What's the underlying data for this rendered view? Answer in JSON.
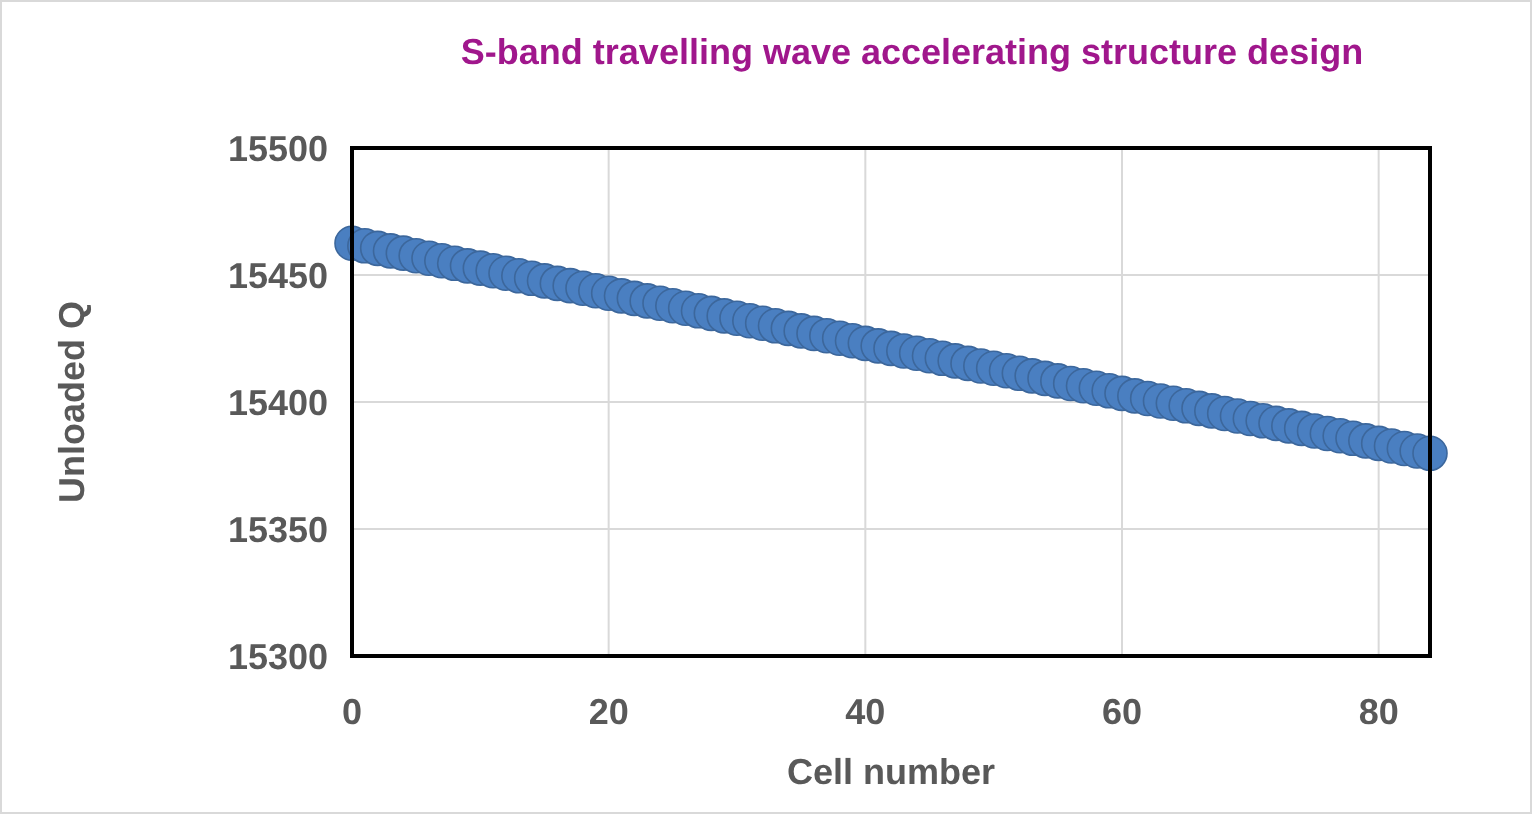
{
  "chart_data": {
    "type": "scatter",
    "title": "S-band travelling wave accelerating structure design",
    "xlabel": "Cell number",
    "ylabel": "Unloaded Q",
    "xlim": [
      0,
      84
    ],
    "xticks": [
      0,
      20,
      40,
      60,
      80
    ],
    "ylim": [
      15300,
      15500
    ],
    "yticks": [
      15300,
      15350,
      15400,
      15450,
      15500
    ],
    "grid": true,
    "marker": "circle",
    "series": [
      {
        "color": "#4a7fc1",
        "x": [
          0,
          1,
          2,
          3,
          4,
          5,
          6,
          7,
          8,
          9,
          10,
          11,
          12,
          13,
          14,
          15,
          16,
          17,
          18,
          19,
          20,
          21,
          22,
          23,
          24,
          25,
          26,
          27,
          28,
          29,
          30,
          31,
          32,
          33,
          34,
          35,
          36,
          37,
          38,
          39,
          40,
          41,
          42,
          43,
          44,
          45,
          46,
          47,
          48,
          49,
          50,
          51,
          52,
          53,
          54,
          55,
          56,
          57,
          58,
          59,
          60,
          61,
          62,
          63,
          64,
          65,
          66,
          67,
          68,
          69,
          70,
          71,
          72,
          73,
          74,
          75,
          76,
          77,
          78,
          79,
          80,
          81,
          82,
          83,
          84
        ],
        "values": [
          15462.5,
          15461.5,
          15460.5,
          15459.5,
          15458.6,
          15457.6,
          15456.6,
          15455.6,
          15454.6,
          15453.6,
          15452.7,
          15451.7,
          15450.7,
          15449.7,
          15448.7,
          15447.7,
          15446.7,
          15445.8,
          15444.8,
          15443.8,
          15442.8,
          15441.8,
          15440.8,
          15439.8,
          15438.9,
          15437.9,
          15436.9,
          15435.9,
          15434.9,
          15433.9,
          15433.0,
          15432.0,
          15431.0,
          15430.0,
          15429.0,
          15428.0,
          15427.0,
          15426.1,
          15425.1,
          15424.1,
          15423.1,
          15422.1,
          15421.1,
          15420.1,
          15419.2,
          15418.2,
          15417.2,
          15416.2,
          15415.2,
          15414.2,
          15413.3,
          15412.3,
          15411.3,
          15410.3,
          15409.3,
          15408.3,
          15407.3,
          15406.4,
          15405.4,
          15404.4,
          15403.4,
          15402.4,
          15401.4,
          15400.4,
          15399.5,
          15398.5,
          15397.5,
          15396.5,
          15395.5,
          15394.5,
          15393.5,
          15392.6,
          15391.6,
          15390.6,
          15389.6,
          15388.6,
          15387.6,
          15386.7,
          15385.7,
          15384.7,
          15383.7,
          15382.7,
          15381.7,
          15380.7,
          15379.8
        ]
      }
    ]
  }
}
